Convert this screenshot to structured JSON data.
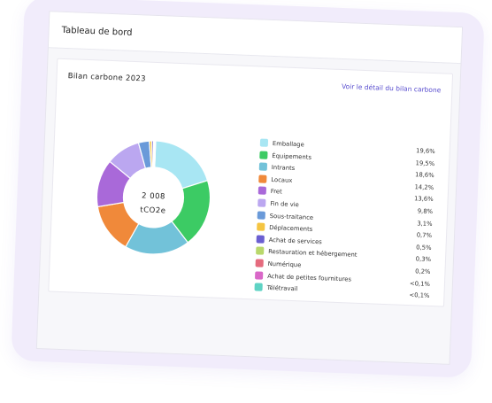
{
  "dashboard": {
    "title": "Tableau de bord",
    "card_title": "Bilan carbone 2023",
    "link": "Voir le détail du bilan carbone",
    "total_value": "2 008",
    "total_unit": "tCO2e"
  },
  "chart_data": {
    "type": "pie",
    "categories": [
      "Emballage",
      "Équipements",
      "Intrants",
      "Locaux",
      "Fret",
      "Fin de vie",
      "Sous-traitance",
      "Déplacements",
      "Achat de services",
      "Restauration et hébergement",
      "Numérique",
      "Achat de petites fournitures",
      "Télétravail"
    ],
    "labels": [
      "19,6%",
      "19,5%",
      "18,6%",
      "14,2%",
      "13,6%",
      "9,8%",
      "3,1%",
      "0,7%",
      "0,5%",
      "0,3%",
      "0,2%",
      "<0,1%",
      "<0,1%"
    ],
    "values": [
      19.6,
      19.5,
      18.6,
      14.2,
      13.6,
      9.8,
      3.1,
      0.7,
      0.5,
      0.3,
      0.2,
      0.05,
      0.05
    ],
    "colors": [
      "#a8e6f3",
      "#3ccb64",
      "#72c2d9",
      "#f0893a",
      "#a969d9",
      "#bba7f0",
      "#6a9ad9",
      "#f5c542",
      "#6b5fd1",
      "#b9d86b",
      "#e56b7e",
      "#d968c8",
      "#5fd3c4"
    ],
    "donut": true
  }
}
